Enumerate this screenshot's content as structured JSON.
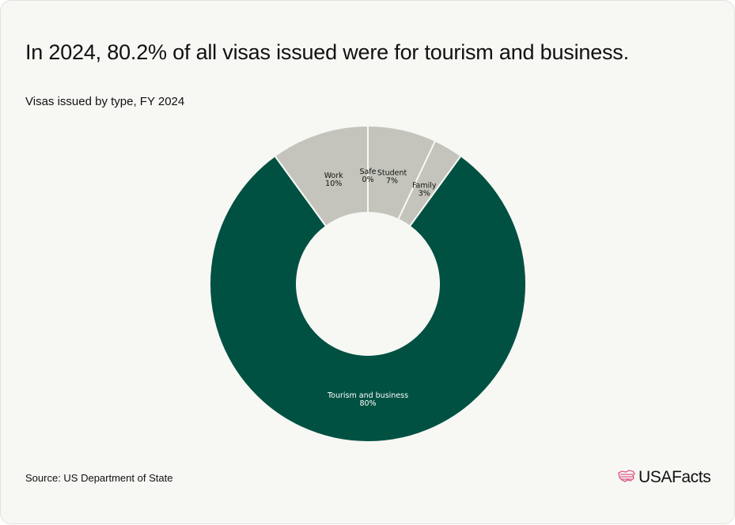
{
  "header": {
    "title": "In 2024, 80.2% of all visas issued were for tourism and business.",
    "subtitle": "Visas issued by type, FY 2024"
  },
  "footer": {
    "source": "Source: US Department of State",
    "brand": "USAFacts",
    "brand_icon": "us-map-flag-icon"
  },
  "colors": {
    "primary": "#005142",
    "secondary": "#c4c4bd",
    "background": "#f7f7f3",
    "brand_accent": "#e05a8a"
  },
  "chart_data": {
    "type": "pie",
    "donut": true,
    "title": "Visas issued by type, FY 2024",
    "legend": "none",
    "slices": [
      {
        "name": "Student",
        "value": 7,
        "label": "7%",
        "color": "#c4c4bd"
      },
      {
        "name": "Family",
        "value": 3,
        "label": "3%",
        "color": "#c4c4bd"
      },
      {
        "name": "Tourism and business",
        "value": 80,
        "label": "80%",
        "color": "#005142"
      },
      {
        "name": "Work",
        "value": 10,
        "label": "10%",
        "color": "#c4c4bd"
      },
      {
        "name": "Safe",
        "value": 0,
        "label": "0%",
        "color": "#c4c4bd"
      }
    ]
  }
}
